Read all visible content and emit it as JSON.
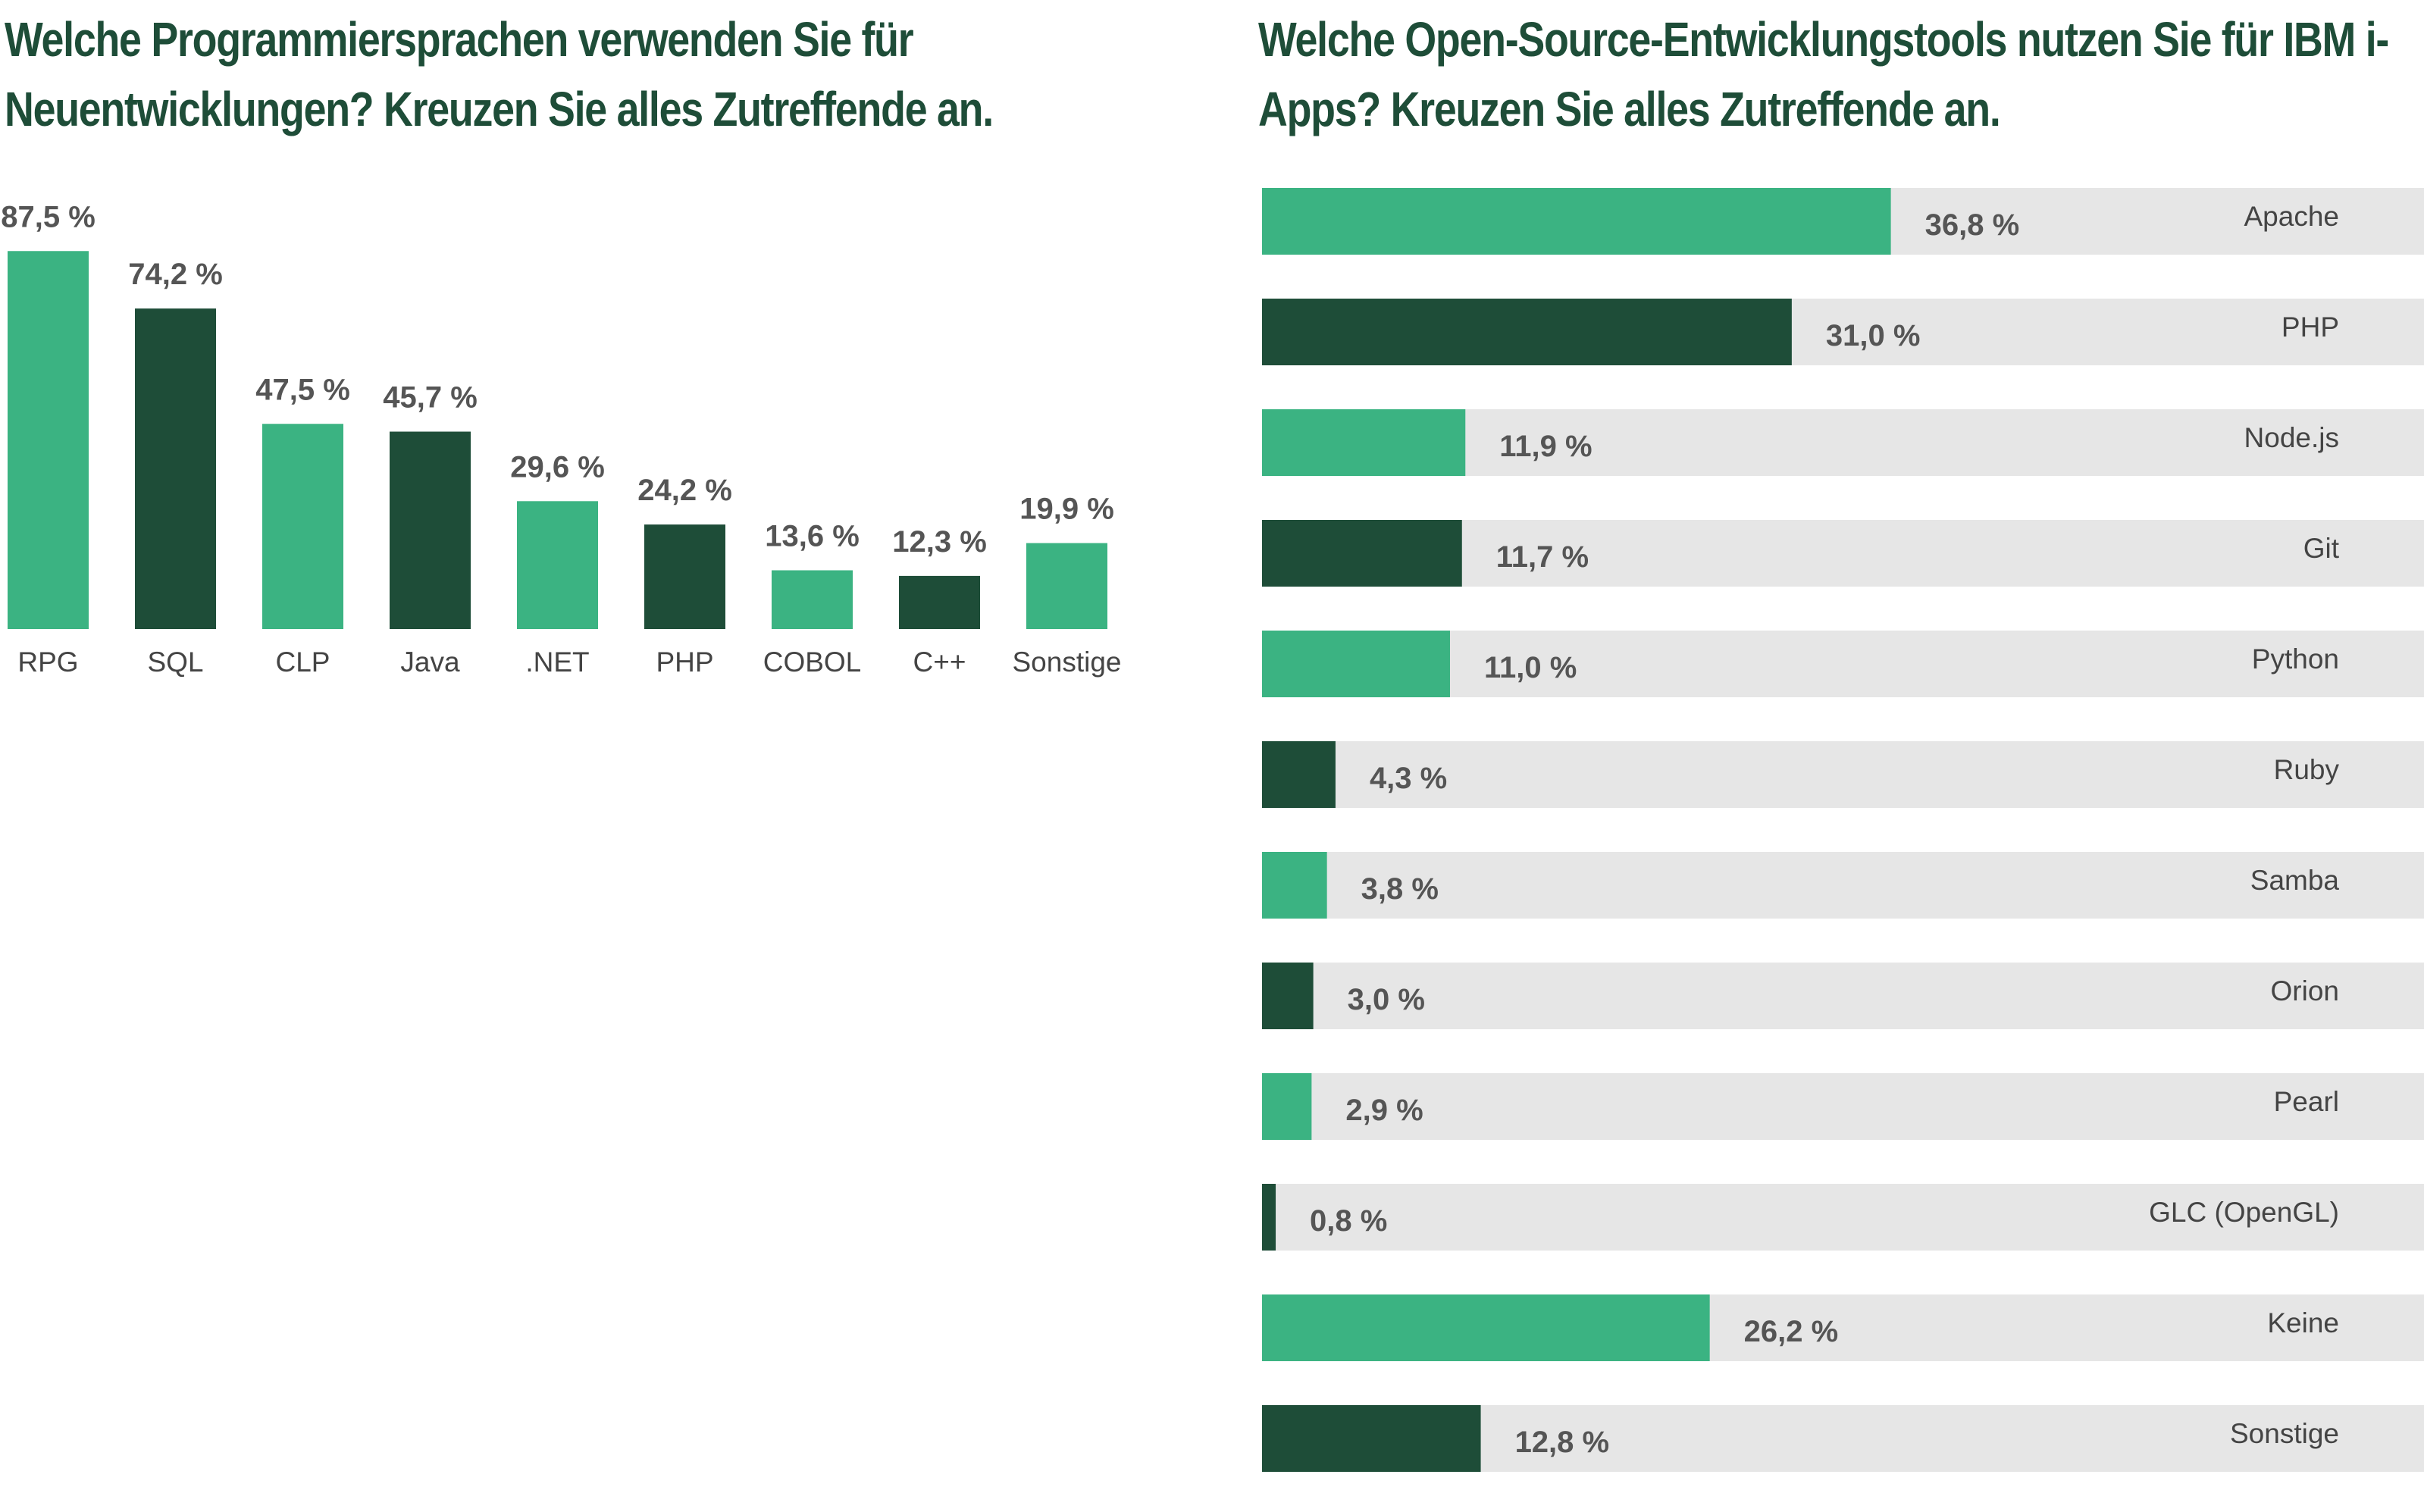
{
  "colors": {
    "light": "#3bb382",
    "dark": "#1e4d38",
    "track": "#e6e6e6",
    "title": "#1e4d38"
  },
  "chart_data": [
    {
      "type": "bar",
      "title": "Welche Programmiersprachen verwenden Sie für Neuentwicklungen? Kreuzen Sie alles Zutreffende an.",
      "categories": [
        "RPG",
        "SQL",
        "CLP",
        "Java",
        ".NET",
        "PHP",
        "COBOL",
        "C++",
        "Sonstige"
      ],
      "values": [
        87.5,
        74.2,
        47.5,
        45.7,
        29.6,
        24.2,
        13.6,
        12.3,
        19.9
      ],
      "value_labels": [
        "87,5 %",
        "74,2 %",
        "47,5 %",
        "45,7 %",
        "29,6 %",
        "24,2 %",
        "13,6 %",
        "12,3 %",
        "19,9 %"
      ],
      "bar_colors": [
        "light",
        "dark",
        "light",
        "dark",
        "light",
        "dark",
        "light",
        "dark",
        "light"
      ],
      "xlabel": "",
      "ylabel": "",
      "ylim": [
        0,
        100
      ],
      "grid": false
    },
    {
      "type": "bar",
      "orientation": "horizontal",
      "title": "Welche Open-Source-Entwicklungstools nutzen Sie für IBM i-Apps? Kreuzen Sie alles Zutreffende an.",
      "categories": [
        "Apache",
        "PHP",
        "Node.js",
        "Git",
        "Python",
        "Ruby",
        "Samba",
        "Orion",
        "Pearl",
        "GLC (OpenGL)",
        "Keine",
        "Sonstige"
      ],
      "values": [
        36.8,
        31.0,
        11.9,
        11.7,
        11.0,
        4.3,
        3.8,
        3.0,
        2.9,
        0.8,
        26.2,
        12.8
      ],
      "value_labels": [
        "36,8 %",
        "31,0 %",
        "11,9 %",
        "11,7 %",
        "11,0 %",
        "4,3 %",
        "3,8 %",
        "3,0 %",
        "2,9 %",
        "0,8 %",
        "26,2 %",
        "12,8 %"
      ],
      "bar_colors": [
        "light",
        "dark",
        "light",
        "dark",
        "light",
        "dark",
        "light",
        "dark",
        "light",
        "dark",
        "light",
        "dark"
      ],
      "xlabel": "",
      "ylabel": "",
      "xlim": [
        0,
        68
      ],
      "grid": false
    }
  ]
}
